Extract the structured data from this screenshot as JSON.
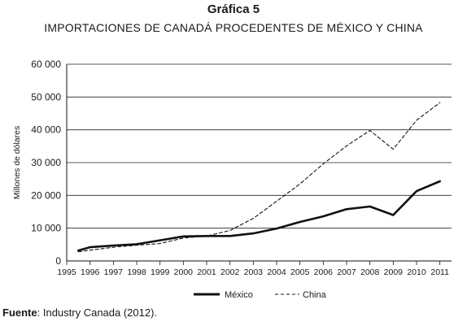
{
  "figure": {
    "label": "Gráfica 5",
    "title": "IMPORTACIONES DE CANADÁ PROCEDENTES DE MÉXICO Y CHINA",
    "source_label": "Fuente",
    "source_text": ": Industry Canada (2012)."
  },
  "chart_data": {
    "type": "line",
    "title": "IMPORTACIONES DE CANADÁ PROCEDENTES DE MÉXICO Y CHINA",
    "xlabel": "",
    "ylabel": "Millones de dólares",
    "ylim": [
      0,
      60000
    ],
    "yticks": [
      0,
      10000,
      20000,
      30000,
      40000,
      50000,
      60000
    ],
    "ytick_labels": [
      "0",
      "10 000",
      "20 000",
      "30 000",
      "40 000",
      "50 000",
      "60 000"
    ],
    "xticks": [
      "1995",
      "1996",
      "1997",
      "1998",
      "1999",
      "2000",
      "2001",
      "2002",
      "2003",
      "2004",
      "2005",
      "2006",
      "2007",
      "2008",
      "2009",
      "2010",
      "2011"
    ],
    "grid": "horizontal",
    "legend_position": "bottom-center",
    "x": [
      1995,
      1996,
      1997,
      1998,
      1999,
      2000,
      2001,
      2002,
      2003,
      2004,
      2005,
      2006,
      2007,
      2008,
      2009,
      2010,
      2011
    ],
    "series": [
      {
        "name": "México",
        "style": "solid-thick",
        "color": "#111111",
        "values": [
          3200,
          4200,
          4700,
          5100,
          6300,
          7500,
          7600,
          7600,
          8400,
          9900,
          11900,
          13600,
          15800,
          16600,
          14000,
          21300,
          24300
        ]
      },
      {
        "name": "China",
        "style": "dashed",
        "color": "#111111",
        "values": [
          2800,
          3300,
          4200,
          4800,
          5300,
          7000,
          7600,
          9300,
          13000,
          18200,
          23500,
          29600,
          35100,
          39800,
          34100,
          42900,
          48300
        ]
      }
    ]
  }
}
